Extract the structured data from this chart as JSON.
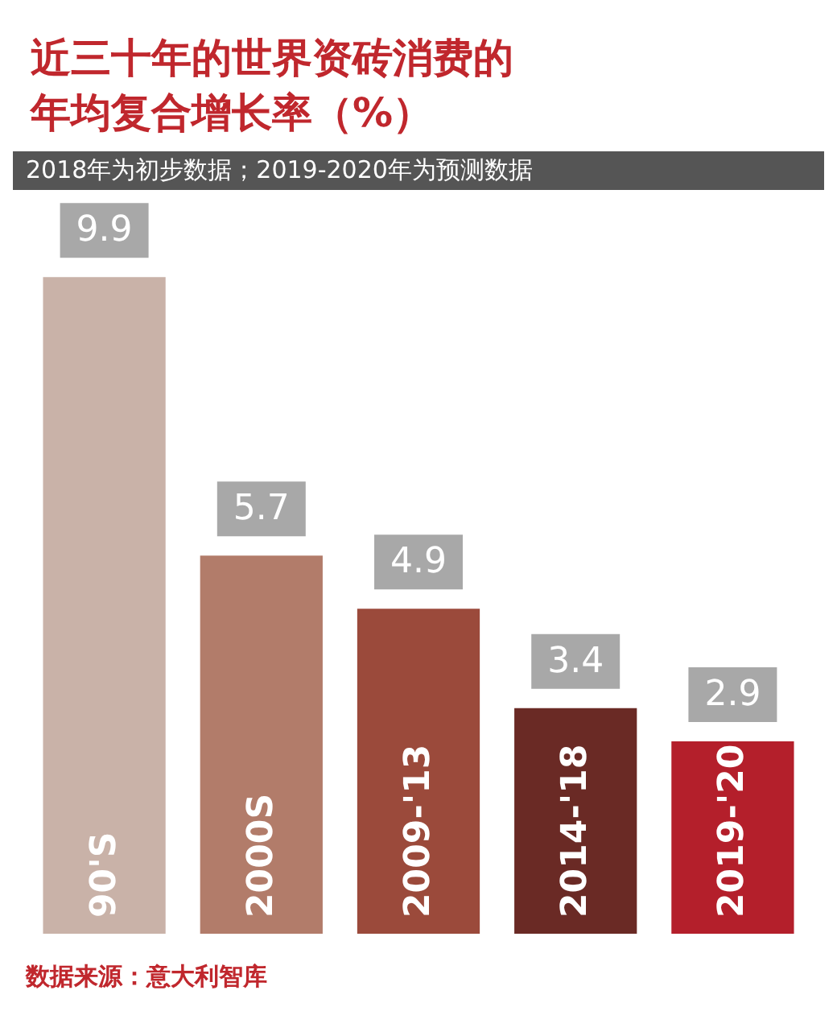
{
  "chart_data": {
    "type": "bar",
    "title": "近三十年的世界资砖消费的年均复合增长率（%）",
    "subtitle": "2018年为初步数据；2019-2020年为预测数据",
    "categories": [
      "90'S",
      "2000S",
      "2009-'13",
      "2014-'18",
      "2019-'20"
    ],
    "values": [
      9.9,
      5.7,
      4.9,
      3.4,
      2.9
    ],
    "colors": [
      "#c9b2a8",
      "#b27c6a",
      "#9b4a3b",
      "#6a2a25",
      "#b41f2b"
    ],
    "data_labels": true,
    "annotations": [
      "数据来源：意大利智库"
    ]
  }
}
